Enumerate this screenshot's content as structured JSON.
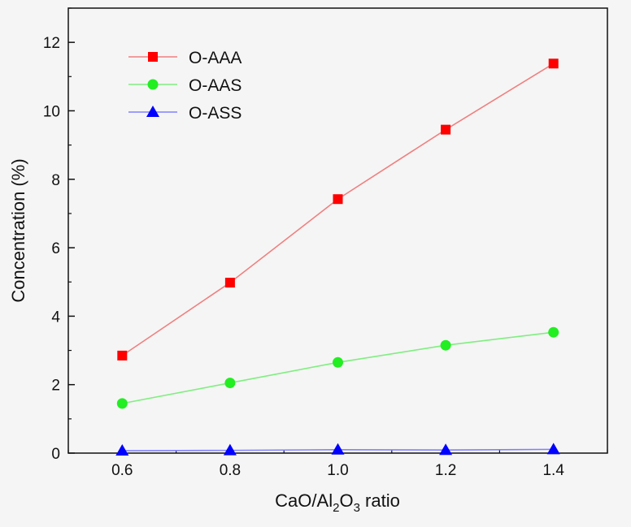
{
  "chart_data": {
    "type": "line",
    "title": "",
    "xlabel": {
      "base": "CaO/Al",
      "sub1": "2",
      "mid": "O",
      "sub2": "3",
      "tail": " ratio"
    },
    "ylabel": "Concentration (%)",
    "x": [
      0.6,
      0.8,
      1.0,
      1.2,
      1.4
    ],
    "xlim": [
      0.5,
      1.5
    ],
    "ylim": [
      0,
      13
    ],
    "xticks": [
      "0.6",
      "0.8",
      "1.0",
      "1.2",
      "1.4"
    ],
    "yticks": [
      "0",
      "2",
      "4",
      "6",
      "8",
      "10",
      "12"
    ],
    "legend_position": "top-left",
    "grid": false,
    "series": [
      {
        "name": "O-AAA",
        "marker": "square",
        "line_color": "#f08080",
        "marker_color": "#ff0000",
        "values": [
          2.85,
          4.98,
          7.42,
          9.45,
          11.38
        ]
      },
      {
        "name": "O-AAS",
        "marker": "circle",
        "line_color": "#80ee80",
        "marker_color": "#22ee22",
        "values": [
          1.45,
          2.05,
          2.65,
          3.15,
          3.53
        ]
      },
      {
        "name": "O-ASS",
        "marker": "triangle",
        "line_color": "#8080ff",
        "marker_color": "#0000ff",
        "values": [
          0.07,
          0.08,
          0.1,
          0.09,
          0.11
        ]
      }
    ]
  }
}
